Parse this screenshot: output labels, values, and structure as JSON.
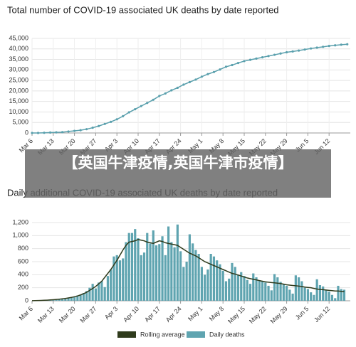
{
  "banner": {
    "text": "【英国牛津疫情,英国牛津市疫情】"
  },
  "chart_data": [
    {
      "type": "line",
      "title": "Total number of COVID-19 associated UK deaths by date reported",
      "x": [
        0,
        2,
        4,
        6,
        8,
        10,
        12,
        14,
        16,
        18,
        20,
        22,
        24,
        26,
        28,
        30,
        32,
        34,
        36,
        38,
        40,
        42,
        44,
        46,
        48,
        50,
        52,
        54,
        56,
        58,
        60,
        62,
        64,
        66,
        68,
        70,
        72,
        74,
        76,
        78,
        80,
        82,
        84,
        86,
        88,
        90,
        92,
        94,
        96,
        98,
        100,
        102,
        104
      ],
      "series": [
        {
          "color": "#5aa0ad",
          "values": [
            0,
            0,
            100,
            200,
            300,
            400,
            700,
            1000,
            1300,
            1800,
            2500,
            3300,
            4300,
            5300,
            6500,
            8000,
            9800,
            11300,
            12800,
            14300,
            15800,
            17600,
            18800,
            20300,
            21500,
            23000,
            24200,
            25400,
            26800,
            28000,
            29000,
            30200,
            31500,
            32300,
            33300,
            34200,
            34800,
            35400,
            36000,
            36600,
            37200,
            37800,
            38400,
            38800,
            39200,
            39700,
            40200,
            40600,
            41000,
            41400,
            41700,
            42000,
            42200
          ]
        }
      ],
      "xlim": [
        0,
        105
      ],
      "xticks": [
        {
          "value": 0,
          "label": "Mar 6"
        },
        {
          "value": 7,
          "label": "Mar 13"
        },
        {
          "value": 14,
          "label": "Mar 20"
        },
        {
          "value": 21,
          "label": "Mar 27"
        },
        {
          "value": 28,
          "label": "Apr 3"
        },
        {
          "value": 35,
          "label": "Apr 10"
        },
        {
          "value": 42,
          "label": "Apr 17"
        },
        {
          "value": 49,
          "label": "Apr 24"
        },
        {
          "value": 56,
          "label": "May 1"
        },
        {
          "value": 63,
          "label": "May 8"
        },
        {
          "value": 70,
          "label": "May 15"
        },
        {
          "value": 77,
          "label": "May 22"
        },
        {
          "value": 84,
          "label": "May 29"
        },
        {
          "value": 91,
          "label": "Jun 5"
        },
        {
          "value": 98,
          "label": "Jun 12"
        }
      ],
      "ylim": [
        0,
        45000
      ],
      "yticks": [
        0,
        {
          "value": 5000,
          "label": "5,000"
        },
        {
          "value": 10000,
          "label": "10,000"
        },
        {
          "value": 15000,
          "label": "15,000"
        },
        {
          "value": 20000,
          "label": "20,000"
        },
        {
          "value": 25000,
          "label": "25,000"
        },
        {
          "value": 30000,
          "label": "30,000"
        },
        {
          "value": 35000,
          "label": "35,000"
        },
        {
          "value": 40000,
          "label": "40,000"
        },
        {
          "value": 45000,
          "label": "45,000"
        }
      ],
      "grid": true,
      "markers": true
    },
    {
      "type": "bar",
      "title": "Daily additional COVID-19 associated UK deaths by date reported",
      "x": [
        0,
        1,
        2,
        3,
        4,
        5,
        6,
        7,
        8,
        9,
        10,
        11,
        12,
        13,
        14,
        15,
        16,
        17,
        18,
        19,
        20,
        21,
        22,
        23,
        24,
        25,
        26,
        27,
        28,
        29,
        30,
        31,
        32,
        33,
        34,
        35,
        36,
        37,
        38,
        39,
        40,
        41,
        42,
        43,
        44,
        45,
        46,
        47,
        48,
        49,
        50,
        51,
        52,
        53,
        54,
        55,
        56,
        57,
        58,
        59,
        60,
        61,
        62,
        63,
        64,
        65,
        66,
        67,
        68,
        69,
        70,
        71,
        72,
        73,
        74,
        75,
        76,
        77,
        78,
        79,
        80,
        81,
        82,
        83,
        84,
        85,
        86,
        87,
        88,
        89,
        90,
        91,
        92,
        93,
        94,
        95,
        96,
        97,
        98,
        99,
        100,
        101,
        102,
        103
      ],
      "series": [
        {
          "name": "Rolling average",
          "color": "#2f3b1c",
          "type": "line",
          "values": [
            2,
            3,
            4,
            6,
            8,
            10,
            13,
            16,
            20,
            25,
            30,
            36,
            44,
            52,
            62,
            74,
            90,
            108,
            130,
            160,
            190,
            220,
            260,
            300,
            360,
            420,
            480,
            550,
            620,
            700,
            780,
            850,
            900,
            910,
            920,
            940,
            930,
            920,
            900,
            890,
            880,
            900,
            920,
            910,
            890,
            880,
            870,
            860,
            850,
            820,
            790,
            760,
            730,
            710,
            690,
            660,
            630,
            600,
            580,
            560,
            540,
            520,
            500,
            480,
            460,
            440,
            420,
            410,
            395,
            380,
            365,
            350,
            340,
            330,
            320,
            310,
            300,
            290,
            285,
            280,
            275,
            270,
            265,
            255,
            245,
            240,
            235,
            230,
            225,
            220,
            210,
            205,
            200,
            190,
            180,
            175,
            170,
            165,
            160,
            155,
            150,
            150,
            145,
            140
          ]
        },
        {
          "name": "Daily deaths",
          "color": "#5fa4b0",
          "values": [
            0,
            1,
            0,
            4,
            2,
            6,
            10,
            10,
            15,
            20,
            25,
            30,
            45,
            55,
            60,
            80,
            90,
            120,
            150,
            200,
            260,
            190,
            280,
            300,
            210,
            380,
            480,
            680,
            700,
            620,
            650,
            900,
            1040,
            1040,
            1100,
            960,
            700,
            740,
            1040,
            880,
            1080,
            850,
            870,
            990,
            700,
            1140,
            900,
            820,
            1170,
            760,
            520,
            600,
            1020,
            880,
            780,
            720,
            520,
            400,
            480,
            720,
            680,
            620,
            560,
            460,
            300,
            340,
            580,
            520,
            400,
            440,
            380,
            320,
            260,
            420,
            360,
            310,
            300,
            280,
            230,
            160,
            410,
            360,
            290,
            260,
            230,
            170,
            110,
            390,
            360,
            300,
            200,
            180,
            130,
            90,
            330,
            240,
            220,
            160,
            140,
            90,
            40,
            230,
            180,
            170
          ]
        }
      ],
      "xlim": [
        0,
        105
      ],
      "xticks": [
        {
          "value": 0,
          "label": "Mar 6"
        },
        {
          "value": 7,
          "label": "Mar 13"
        },
        {
          "value": 14,
          "label": "Mar 20"
        },
        {
          "value": 21,
          "label": "Mar 27"
        },
        {
          "value": 28,
          "label": "Apr 3"
        },
        {
          "value": 35,
          "label": "Apr 10"
        },
        {
          "value": 42,
          "label": "Apr 17"
        },
        {
          "value": 49,
          "label": "Apr 24"
        },
        {
          "value": 56,
          "label": "May 1"
        },
        {
          "value": 63,
          "label": "May 8"
        },
        {
          "value": 70,
          "label": "May 15"
        },
        {
          "value": 77,
          "label": "May 22"
        },
        {
          "value": 84,
          "label": "May 29"
        },
        {
          "value": 91,
          "label": "Jun 5"
        },
        {
          "value": 98,
          "label": "Jun 12"
        }
      ],
      "ylim": [
        0,
        1200
      ],
      "yticks": [
        0,
        200,
        400,
        600,
        800,
        {
          "value": 1000,
          "label": "1,000"
        },
        {
          "value": 1200,
          "label": "1,200"
        }
      ],
      "grid": true
    }
  ]
}
